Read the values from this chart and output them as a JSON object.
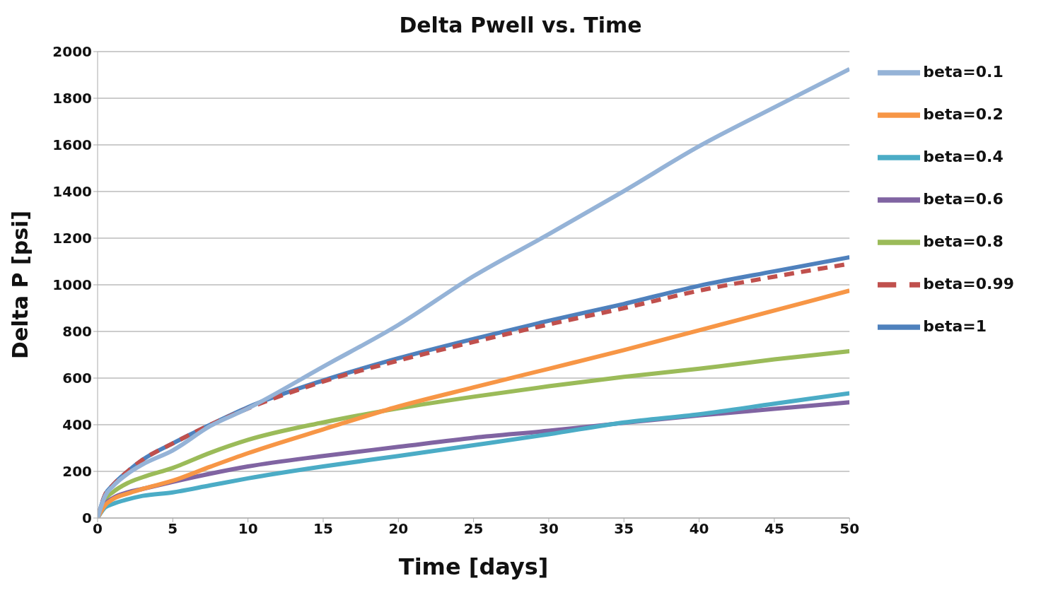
{
  "chart_data": {
    "type": "line",
    "title": "Delta Pwell vs. Time",
    "xlabel": "Time [days]",
    "ylabel": "Delta P [psi]",
    "x": [
      0,
      0.5,
      1,
      2,
      3,
      5,
      7.5,
      10,
      15,
      20,
      25,
      30,
      35,
      40,
      45,
      50
    ],
    "series": [
      {
        "name": "beta=1",
        "color": "#4f81bd",
        "values": [
          0,
          100,
          140,
          200,
          250,
          320,
          400,
          475,
          590,
          685,
          768,
          846,
          918,
          996,
          1058,
          1118
        ]
      },
      {
        "name": "beta=0.99",
        "color": "#c0504d",
        "line_style": "dashed",
        "values": [
          0,
          100,
          140,
          200,
          250,
          320,
          400,
          470,
          585,
          675,
          755,
          830,
          900,
          975,
          1035,
          1090
        ]
      },
      {
        "name": "beta=0.8",
        "color": "#9bbb59",
        "values": [
          0,
          80,
          110,
          150,
          175,
          215,
          280,
          335,
          410,
          470,
          520,
          565,
          605,
          640,
          680,
          715
        ]
      },
      {
        "name": "beta=0.6",
        "color": "#8064a2",
        "values": [
          0,
          60,
          85,
          110,
          125,
          155,
          190,
          221,
          266,
          305,
          344,
          374,
          408,
          440,
          468,
          496
        ]
      },
      {
        "name": "beta=0.4",
        "color": "#4bacc6",
        "values": [
          0,
          45,
          60,
          80,
          95,
          110,
          140,
          170,
          221,
          266,
          312,
          359,
          410,
          445,
          490,
          535
        ]
      },
      {
        "name": "beta=0.2",
        "color": "#f79646",
        "values": [
          0,
          55,
          80,
          105,
          125,
          160,
          220,
          278,
          380,
          478,
          560,
          640,
          720,
          805,
          890,
          975
        ]
      },
      {
        "name": "beta=0.1",
        "color": "#95b3d7",
        "values": [
          0,
          95,
          135,
          190,
          230,
          290,
          395,
          470,
          649,
          828,
          1037,
          1217,
          1402,
          1594,
          1761,
          1925
        ]
      }
    ],
    "xlim": [
      0,
      50
    ],
    "xticks": [
      0,
      5,
      10,
      15,
      20,
      25,
      30,
      35,
      40,
      45,
      50
    ],
    "ylim": [
      0,
      2000
    ],
    "yticks": [
      0,
      200,
      400,
      600,
      800,
      1000,
      1200,
      1400,
      1600,
      1800,
      2000
    ],
    "grid": "y",
    "legend": "right",
    "marker": "none",
    "line_style": "solid"
  }
}
